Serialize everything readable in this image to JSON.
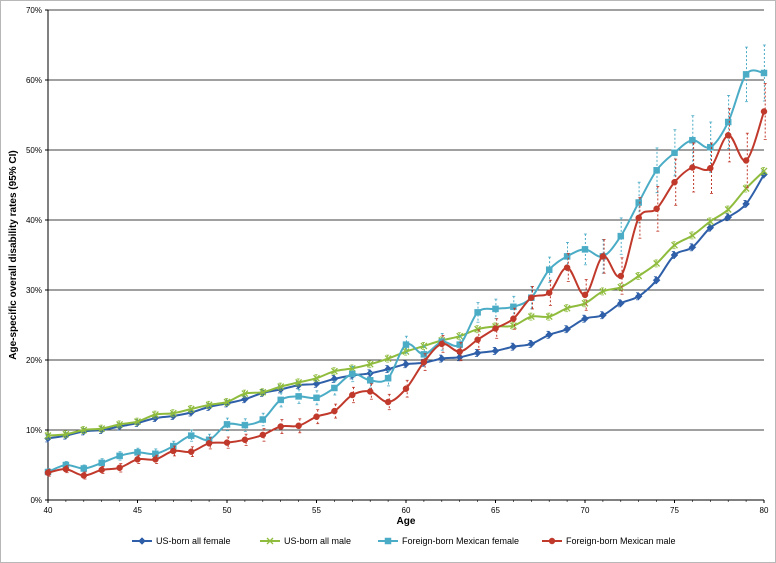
{
  "chart_data": {
    "type": "line",
    "xlabel": "Age",
    "ylabel": "Age-specific overall disability rates (95% CI)",
    "xlim": [
      40,
      80
    ],
    "ylim": [
      0,
      70
    ],
    "x_ticks": [
      40,
      45,
      50,
      55,
      60,
      65,
      70,
      75,
      80
    ],
    "y_ticks": [
      "0%",
      "10%",
      "20%",
      "30%",
      "40%",
      "50%",
      "60%",
      "70%"
    ],
    "grid": "horizontal major",
    "legend_position": "bottom",
    "error_bars": "95% CI dotted vertical lines",
    "x": [
      40,
      41,
      42,
      43,
      44,
      45,
      46,
      47,
      48,
      49,
      50,
      51,
      52,
      53,
      54,
      55,
      56,
      57,
      58,
      59,
      60,
      61,
      62,
      63,
      64,
      65,
      66,
      67,
      68,
      69,
      70,
      71,
      72,
      73,
      74,
      75,
      76,
      77,
      78,
      79,
      80
    ],
    "series": [
      {
        "name": "US-born all female",
        "color": "#2e5fa8",
        "marker": "diamond",
        "values": [
          8.8,
          9.2,
          9.8,
          10.0,
          10.5,
          11.0,
          11.7,
          12.0,
          12.5,
          13.3,
          13.8,
          14.4,
          15.3,
          15.8,
          16.4,
          16.6,
          17.3,
          17.8,
          18.1,
          18.7,
          19.4,
          19.6,
          20.2,
          20.4,
          21.0,
          21.3,
          21.9,
          22.3,
          23.6,
          24.4,
          25.9,
          26.4,
          28.1,
          29.1,
          31.4,
          35.0,
          36.1,
          38.9,
          40.4,
          42.3,
          46.5
        ],
        "ci": 0.5
      },
      {
        "name": "US-born all male",
        "color": "#8fbc3d",
        "marker": "x",
        "values": [
          9.2,
          9.4,
          10.0,
          10.2,
          10.8,
          11.2,
          12.2,
          12.4,
          13.0,
          13.6,
          14.0,
          15.2,
          15.4,
          16.2,
          16.8,
          17.4,
          18.4,
          18.8,
          19.4,
          20.2,
          21.2,
          22.0,
          22.8,
          23.4,
          24.4,
          24.8,
          24.9,
          26.2,
          26.2,
          27.4,
          28.1,
          29.8,
          30.4,
          32.0,
          33.8,
          36.4,
          37.8,
          39.8,
          41.5,
          44.5,
          47.0
        ],
        "ci": 0.5
      },
      {
        "name": "Foreign-born Mexican female",
        "color": "#4bacc6",
        "marker": "square",
        "values": [
          4.0,
          5.0,
          4.5,
          5.3,
          6.3,
          6.8,
          6.6,
          7.7,
          9.2,
          8.6,
          10.8,
          10.7,
          11.5,
          14.3,
          14.8,
          14.6,
          16.0,
          18.0,
          17.1,
          17.4,
          22.2,
          20.8,
          22.6,
          22.2,
          26.8,
          27.3,
          27.6,
          28.9,
          32.9,
          34.8,
          35.8,
          34.8,
          37.7,
          42.5,
          47.1,
          49.6,
          51.4,
          50.4,
          54.0,
          60.8,
          61.0
        ],
        "ci": [
          0.5,
          0.5,
          0.5,
          0.6,
          0.6,
          0.6,
          0.7,
          0.7,
          0.8,
          0.8,
          0.9,
          0.9,
          0.9,
          1.0,
          1.0,
          1.0,
          1.0,
          1.1,
          1.1,
          1.1,
          1.2,
          1.2,
          1.2,
          1.3,
          1.4,
          1.4,
          1.5,
          1.6,
          1.8,
          2.0,
          2.2,
          2.4,
          2.6,
          2.9,
          3.2,
          3.3,
          3.5,
          3.6,
          3.8,
          3.9,
          4.0
        ]
      },
      {
        "name": "Foreign-born Mexican male",
        "color": "#c0392b",
        "marker": "circle",
        "values": [
          3.9,
          4.4,
          3.5,
          4.3,
          4.6,
          5.8,
          5.8,
          7.0,
          6.9,
          8.1,
          8.2,
          8.6,
          9.3,
          10.5,
          10.6,
          11.9,
          12.7,
          15.0,
          15.5,
          14.0,
          15.9,
          19.7,
          22.3,
          21.2,
          22.9,
          24.5,
          25.9,
          28.9,
          29.6,
          33.2,
          29.3,
          34.8,
          32.0,
          40.3,
          41.6,
          45.4,
          47.5,
          47.4,
          52.1,
          48.5,
          55.5
        ],
        "ci": [
          0.5,
          0.5,
          0.5,
          0.5,
          0.6,
          0.6,
          0.6,
          0.7,
          0.7,
          0.8,
          0.8,
          0.8,
          0.9,
          1.0,
          1.0,
          1.0,
          1.0,
          1.1,
          1.1,
          1.1,
          1.2,
          1.2,
          1.2,
          1.3,
          1.4,
          1.4,
          1.5,
          1.6,
          1.8,
          2.0,
          2.2,
          2.4,
          2.6,
          2.9,
          3.2,
          3.3,
          3.5,
          3.6,
          3.8,
          3.9,
          4.0
        ]
      }
    ]
  }
}
